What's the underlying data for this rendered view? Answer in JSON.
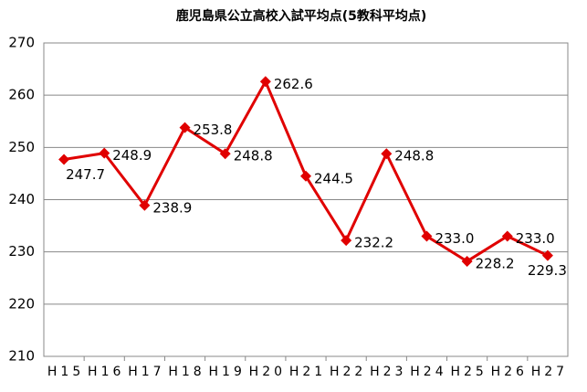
{
  "chart_data": {
    "type": "line",
    "title": "鹿児島県公立高校入試平均点(5教科平均点)",
    "categories": [
      "H15",
      "H16",
      "H17",
      "H18",
      "H19",
      "H20",
      "H21",
      "H22",
      "H23",
      "H24",
      "H25",
      "H26",
      "H27"
    ],
    "values": [
      247.7,
      248.9,
      238.9,
      253.8,
      248.8,
      262.6,
      244.5,
      232.2,
      248.8,
      233.0,
      228.2,
      233.0,
      229.3
    ],
    "value_labels": [
      "247.7",
      "248.9",
      "238.9",
      "253.8",
      "248.8",
      "262.6",
      "244.5",
      "232.2",
      "248.8",
      "233.0",
      "228.2",
      "233.0",
      "229.3"
    ],
    "color": "#e00000",
    "ylim": [
      210,
      270
    ],
    "yticks": [
      210,
      220,
      230,
      240,
      250,
      260,
      270
    ],
    "grid": true
  }
}
